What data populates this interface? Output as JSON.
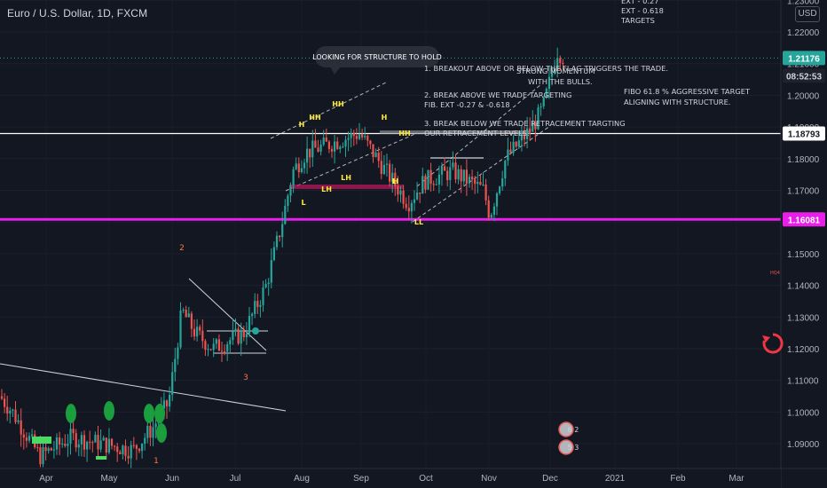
{
  "header": {
    "title": "Euro / U.S. Dollar, 1D, FXCM",
    "currency": "USD"
  },
  "price_axis": {
    "tick_labels": [
      "1.23000",
      "1.22000",
      "1.21000",
      "1.20000",
      "1.19000",
      "1.18000",
      "1.17000",
      "1.16000",
      "1.15000",
      "1.14000",
      "1.13000",
      "1.12000",
      "1.11000",
      "1.10000",
      "1.09000"
    ],
    "current_price": "1.21176",
    "countdown": "08:52:53",
    "level_white": "1.18793",
    "level_magenta": "1.16081"
  },
  "time_axis": {
    "labels": [
      "Apr",
      "May",
      "Jun",
      "Jul",
      "Aug",
      "Sep",
      "Oct",
      "Nov",
      "Dec",
      "2021",
      "Feb",
      "Mar"
    ]
  },
  "annotations": {
    "bubble": "LOOKING FOR STRUCTURE TO HOLD",
    "note1": "1. BREAKOUT ABOVE OR BELOW THE FLAG TRIGGERS THE TRADE.",
    "note2_line1": "2. BREAK ABOVE WE TRADE TARGETING",
    "note2_line2": "FIB. EXT -0.27 & -0.618",
    "note3_line1": "3. BREAK BELOW WE TRADE RETRACEMENT TARGTING",
    "note3_line2": "OUR RETRACEMENT LEVELS.",
    "momentum_line1": "STRONG MOMENTUM",
    "momentum_line2": "WITH THE BULLS.",
    "fibo_line1": "FIBO 61.8 % AGGRESSIVE TARGET",
    "fibo_line2": "ALIGNING WITH STRUCTURE.",
    "targets": [
      "EXT - 0.27",
      "EXT - 0.618",
      "TARGETS"
    ],
    "wave_labels": [
      "2",
      "3",
      "1"
    ],
    "structure_labels": [
      "H",
      "HH",
      "HH",
      "H",
      "HH",
      "H",
      "L",
      "LH",
      "LH",
      "L",
      "LL"
    ],
    "event_badge_top": "6 2",
    "event_badge_bottom": "5 3",
    "side_mark": "HQ4"
  },
  "colors": {
    "background": "#131722",
    "up": "#26a69a",
    "down": "#ef5350",
    "magenta": "#e91ee9",
    "structure_label": "#ffeb3b",
    "wave_label": "#ff7043",
    "price_tag": "#26a69a"
  },
  "chart_data": {
    "type": "candlestick",
    "symbol": "Euro / U.S. Dollar",
    "interval": "1D",
    "ylim": [
      1.083,
      1.232
    ],
    "horizontal_levels": [
      1.18793,
      1.16081
    ],
    "last_price": 1.21176,
    "approx_close_path": [
      {
        "x": "Mar",
        "y": 1.103
      },
      {
        "x": "Apr",
        "y": 1.083
      },
      {
        "x": "May",
        "y": 1.094
      },
      {
        "x": "Jun",
        "y": 1.125
      },
      {
        "x": "Jul",
        "y": 1.124
      },
      {
        "x": "Aug",
        "y": 1.178
      },
      {
        "x": "Sep",
        "y": 1.184
      },
      {
        "x": "Oct",
        "y": 1.168
      },
      {
        "x": "Nov",
        "y": 1.163
      },
      {
        "x": "Dec",
        "y": 1.213
      }
    ]
  }
}
